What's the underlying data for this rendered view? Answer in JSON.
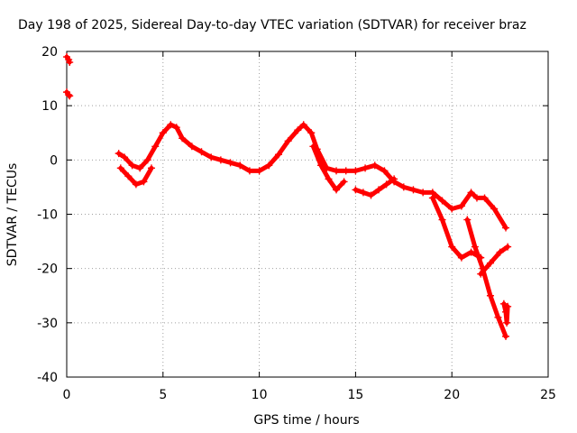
{
  "chart_data": {
    "type": "scatter",
    "title": "Day 198 of 2025, Sidereal Day-to-day VTEC variation (SDTVAR) for receiver braz",
    "xlabel": "GPS time / hours",
    "ylabel": "SDTVAR / TECUs",
    "xlim": [
      0,
      25
    ],
    "ylim": [
      -40,
      20
    ],
    "xticks": [
      0,
      5,
      10,
      15,
      20,
      25
    ],
    "yticks": [
      -40,
      -30,
      -20,
      -10,
      0,
      10,
      20
    ],
    "xtick_labels": [
      "0",
      "5",
      "10",
      "15",
      "20",
      "25"
    ],
    "ytick_labels": [
      "-40",
      "-30",
      "-20",
      "-10",
      "0",
      "10",
      "20"
    ],
    "grid": true,
    "marker": "plus",
    "color": "#ff0000",
    "series": [
      {
        "name": "early-a",
        "points": [
          [
            0,
            19
          ],
          [
            0.1,
            18.5
          ],
          [
            0.15,
            18
          ]
        ]
      },
      {
        "name": "early-b",
        "points": [
          [
            0,
            12.5
          ],
          [
            0.1,
            12
          ],
          [
            0.15,
            11.8
          ]
        ]
      },
      {
        "name": "main",
        "points": [
          [
            2.7,
            1.2
          ],
          [
            3.0,
            0.5
          ],
          [
            3.4,
            -1
          ],
          [
            3.8,
            -1.5
          ],
          [
            4.2,
            0
          ],
          [
            4.6,
            2.5
          ],
          [
            5.0,
            5
          ],
          [
            5.4,
            6.5
          ],
          [
            5.7,
            6
          ],
          [
            6.0,
            4
          ],
          [
            6.5,
            2.5
          ],
          [
            7.0,
            1.5
          ],
          [
            7.5,
            0.5
          ],
          [
            8.0,
            0
          ],
          [
            8.5,
            -0.5
          ],
          [
            9.0,
            -1
          ],
          [
            9.5,
            -2
          ],
          [
            10.0,
            -2
          ],
          [
            10.5,
            -1
          ],
          [
            11.0,
            1
          ],
          [
            11.5,
            3.5
          ],
          [
            12.0,
            5.5
          ],
          [
            12.3,
            6.5
          ],
          [
            12.7,
            5
          ],
          [
            13.0,
            2
          ],
          [
            13.5,
            -1.5
          ],
          [
            14.0,
            -2
          ],
          [
            14.5,
            -2
          ],
          [
            15.0,
            -2
          ],
          [
            15.5,
            -1.5
          ],
          [
            16.0,
            -1
          ],
          [
            16.5,
            -2
          ],
          [
            17.0,
            -4
          ],
          [
            17.5,
            -5
          ],
          [
            18.0,
            -5.5
          ],
          [
            18.5,
            -6
          ],
          [
            19.0,
            -6
          ],
          [
            19.5,
            -7.5
          ],
          [
            20.0,
            -9
          ],
          [
            20.5,
            -8.5
          ],
          [
            21.0,
            -6
          ],
          [
            21.3,
            -7
          ],
          [
            21.7,
            -7
          ],
          [
            22.2,
            -9
          ],
          [
            22.8,
            -12.5
          ]
        ]
      },
      {
        "name": "lower-early",
        "points": [
          [
            2.8,
            -1.5
          ],
          [
            3.2,
            -3
          ],
          [
            3.6,
            -4.5
          ],
          [
            4.0,
            -4
          ],
          [
            4.4,
            -1.5
          ]
        ]
      },
      {
        "name": "dip-14",
        "points": [
          [
            12.8,
            2.5
          ],
          [
            13.2,
            -1
          ],
          [
            13.6,
            -3.5
          ],
          [
            14.0,
            -5.5
          ],
          [
            14.4,
            -4
          ]
        ]
      },
      {
        "name": "lower-15",
        "points": [
          [
            15.0,
            -5.5
          ],
          [
            15.4,
            -6
          ],
          [
            15.8,
            -6.5
          ],
          [
            16.2,
            -5.5
          ],
          [
            16.6,
            -4.5
          ],
          [
            17.0,
            -3.5
          ]
        ]
      },
      {
        "name": "descent-19",
        "points": [
          [
            19.0,
            -7
          ],
          [
            19.5,
            -11
          ],
          [
            20.0,
            -16
          ],
          [
            20.5,
            -18
          ],
          [
            21.0,
            -17
          ],
          [
            21.5,
            -18
          ]
        ]
      },
      {
        "name": "steep-drop",
        "points": [
          [
            20.8,
            -11
          ],
          [
            21.2,
            -16
          ],
          [
            21.6,
            -20
          ],
          [
            22.0,
            -25
          ],
          [
            22.4,
            -29
          ],
          [
            22.8,
            -32.5
          ]
        ]
      },
      {
        "name": "recovery",
        "points": [
          [
            21.5,
            -21
          ],
          [
            22.0,
            -19
          ],
          [
            22.5,
            -17
          ],
          [
            22.9,
            -16
          ]
        ]
      },
      {
        "name": "end-cluster",
        "points": [
          [
            22.7,
            -26.5
          ],
          [
            22.8,
            -28
          ],
          [
            22.85,
            -30
          ],
          [
            22.9,
            -27
          ]
        ]
      }
    ]
  }
}
